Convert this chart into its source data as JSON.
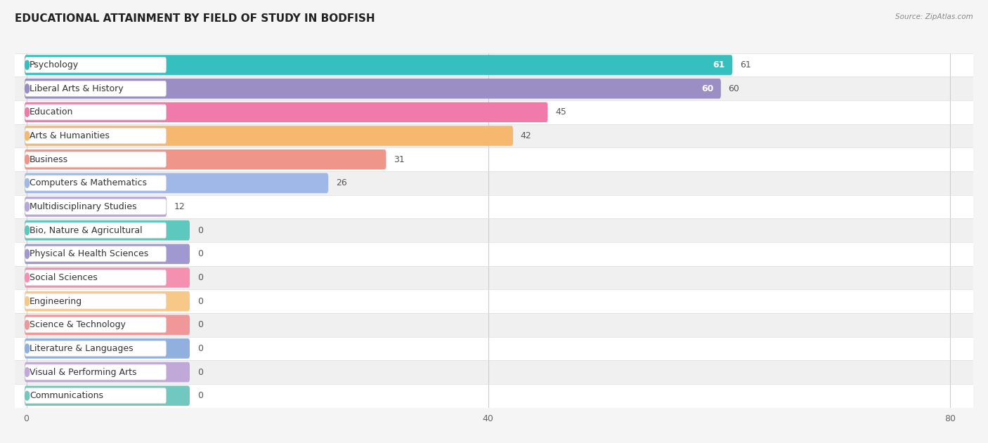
{
  "title": "EDUCATIONAL ATTAINMENT BY FIELD OF STUDY IN BODFISH",
  "source": "Source: ZipAtlas.com",
  "categories": [
    "Psychology",
    "Liberal Arts & History",
    "Education",
    "Arts & Humanities",
    "Business",
    "Computers & Mathematics",
    "Multidisciplinary Studies",
    "Bio, Nature & Agricultural",
    "Physical & Health Sciences",
    "Social Sciences",
    "Engineering",
    "Science & Technology",
    "Literature & Languages",
    "Visual & Performing Arts",
    "Communications"
  ],
  "values": [
    61,
    60,
    45,
    42,
    31,
    26,
    12,
    0,
    0,
    0,
    0,
    0,
    0,
    0,
    0
  ],
  "bar_colors": [
    "#36bfbf",
    "#9b8ec4",
    "#f07aaa",
    "#f5b86e",
    "#f0958a",
    "#a0b8e8",
    "#b8a8d8",
    "#5dc8be",
    "#a098d0",
    "#f590b0",
    "#f8c888",
    "#f09898",
    "#90b0e0",
    "#c0a8d8",
    "#70c8c0"
  ],
  "xlim_max": 80,
  "xticks": [
    0,
    40,
    80
  ],
  "background_color": "#f5f5f5",
  "row_bg_even": "#ffffff",
  "row_bg_odd": "#f0f0f0",
  "title_fontsize": 11,
  "bar_height": 0.55,
  "label_fontsize": 9,
  "value_fontsize": 9,
  "min_bar_width": 14
}
